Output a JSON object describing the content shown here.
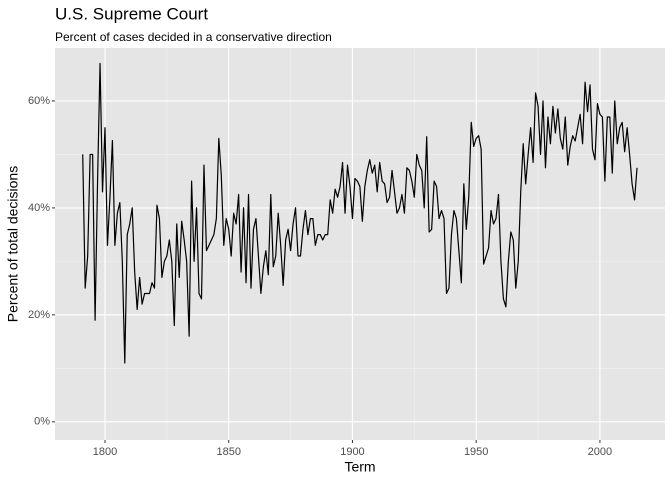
{
  "chart_data": {
    "type": "line",
    "title": "U.S. Supreme Court",
    "subtitle": "Percent of cases decided in a conservative direction",
    "x_label": "Term",
    "y_label": "Percent of total decisions",
    "xlim": [
      1779.8,
      2026.3
    ],
    "ylim": [
      -3.4,
      69.9
    ],
    "xticks": [
      1800,
      1850,
      1900,
      1950,
      2000
    ],
    "yticks": [
      {
        "value": 0,
        "label": "0%"
      },
      {
        "value": 20,
        "label": "20%"
      },
      {
        "value": 40,
        "label": "40%"
      },
      {
        "value": 60,
        "label": "60%"
      }
    ],
    "grid": true,
    "series": [
      {
        "color": "#000000",
        "x": [
          1791,
          1792,
          1793,
          1794,
          1795,
          1796,
          1797,
          1798,
          1799,
          1800,
          1801,
          1802,
          1803,
          1804,
          1805,
          1806,
          1807,
          1808,
          1809,
          1810,
          1811,
          1812,
          1813,
          1814,
          1815,
          1816,
          1817,
          1818,
          1819,
          1820,
          1821,
          1822,
          1823,
          1824,
          1825,
          1826,
          1827,
          1828,
          1829,
          1830,
          1831,
          1832,
          1833,
          1834,
          1835,
          1836,
          1837,
          1838,
          1839,
          1840,
          1841,
          1842,
          1843,
          1844,
          1845,
          1846,
          1847,
          1848,
          1849,
          1850,
          1851,
          1852,
          1853,
          1854,
          1855,
          1856,
          1857,
          1858,
          1859,
          1860,
          1861,
          1862,
          1863,
          1864,
          1865,
          1866,
          1867,
          1868,
          1869,
          1870,
          1871,
          1872,
          1873,
          1874,
          1875,
          1876,
          1877,
          1878,
          1879,
          1880,
          1881,
          1882,
          1883,
          1884,
          1885,
          1886,
          1887,
          1888,
          1889,
          1890,
          1891,
          1892,
          1893,
          1894,
          1895,
          1896,
          1897,
          1898,
          1899,
          1900,
          1901,
          1902,
          1903,
          1904,
          1905,
          1906,
          1907,
          1908,
          1909,
          1910,
          1911,
          1912,
          1913,
          1914,
          1915,
          1916,
          1917,
          1918,
          1919,
          1920,
          1921,
          1922,
          1923,
          1924,
          1925,
          1926,
          1927,
          1928,
          1929,
          1930,
          1931,
          1932,
          1933,
          1934,
          1935,
          1936,
          1937,
          1938,
          1939,
          1940,
          1941,
          1942,
          1943,
          1944,
          1945,
          1946,
          1947,
          1948,
          1949,
          1950,
          1951,
          1952,
          1953,
          1954,
          1955,
          1956,
          1957,
          1958,
          1959,
          1960,
          1961,
          1962,
          1963,
          1964,
          1965,
          1966,
          1967,
          1968,
          1969,
          1970,
          1971,
          1972,
          1973,
          1974,
          1975,
          1976,
          1977,
          1978,
          1979,
          1980,
          1981,
          1982,
          1983,
          1984,
          1985,
          1986,
          1987,
          1988,
          1989,
          1990,
          1991,
          1992,
          1993,
          1994,
          1995,
          1996,
          1997,
          1998,
          1999,
          2000,
          2001,
          2002,
          2003,
          2004,
          2005,
          2006,
          2007,
          2008,
          2009,
          2010,
          2011,
          2012,
          2013,
          2014,
          2015
        ],
        "values": [
          50,
          25,
          31,
          50,
          50,
          19,
          45,
          67,
          43,
          55,
          33,
          42,
          52.6,
          33,
          39,
          41,
          30,
          11,
          35,
          37,
          40,
          28,
          21,
          27,
          22,
          24,
          24,
          24,
          26,
          25,
          40.5,
          38,
          27,
          30,
          31,
          34,
          30,
          18,
          37,
          27,
          37.5,
          34,
          30,
          16,
          45,
          30,
          40,
          24,
          23,
          48,
          32,
          33,
          34,
          35,
          38,
          53,
          46,
          33,
          38,
          36,
          31,
          39,
          37,
          42.5,
          28,
          40,
          26,
          42.5,
          25,
          36,
          38,
          31,
          24,
          29,
          32,
          27.5,
          42.5,
          29,
          31,
          39,
          33,
          25.5,
          34,
          36,
          32,
          37,
          40,
          31,
          31,
          36,
          39.5,
          35,
          38,
          38,
          33,
          35,
          35,
          34,
          35,
          35,
          41.5,
          39,
          43.5,
          42,
          44,
          48.5,
          39,
          48,
          44,
          38,
          45.5,
          45,
          44,
          37.5,
          44,
          47,
          49,
          46.5,
          48,
          43,
          48.5,
          45,
          44.5,
          41,
          42,
          47,
          43,
          39,
          40,
          42.5,
          39,
          47.5,
          47,
          45,
          42,
          50,
          48,
          47,
          40,
          53.3,
          35.5,
          36,
          45,
          44,
          38,
          39.5,
          38,
          24,
          25,
          35,
          39.5,
          38,
          32,
          26,
          44.5,
          36,
          42,
          56,
          51.5,
          53,
          53.5,
          51,
          29.5,
          31,
          32.5,
          39.5,
          37,
          38,
          42.5,
          30,
          23,
          21.5,
          30,
          35.5,
          34,
          25,
          30,
          43,
          52,
          44.5,
          50,
          55,
          48.5,
          61.5,
          59,
          50,
          60,
          47.5,
          57,
          52,
          59,
          54,
          58.5,
          53,
          51,
          57,
          48,
          51.5,
          53.5,
          52.5,
          55,
          57.5,
          52,
          63.5,
          58,
          63,
          51,
          49,
          59.5,
          57.5,
          57,
          45,
          57,
          57,
          46.5,
          60,
          52,
          55,
          56,
          50.5,
          55,
          50,
          44.5,
          41.5,
          47.5
        ]
      }
    ]
  }
}
